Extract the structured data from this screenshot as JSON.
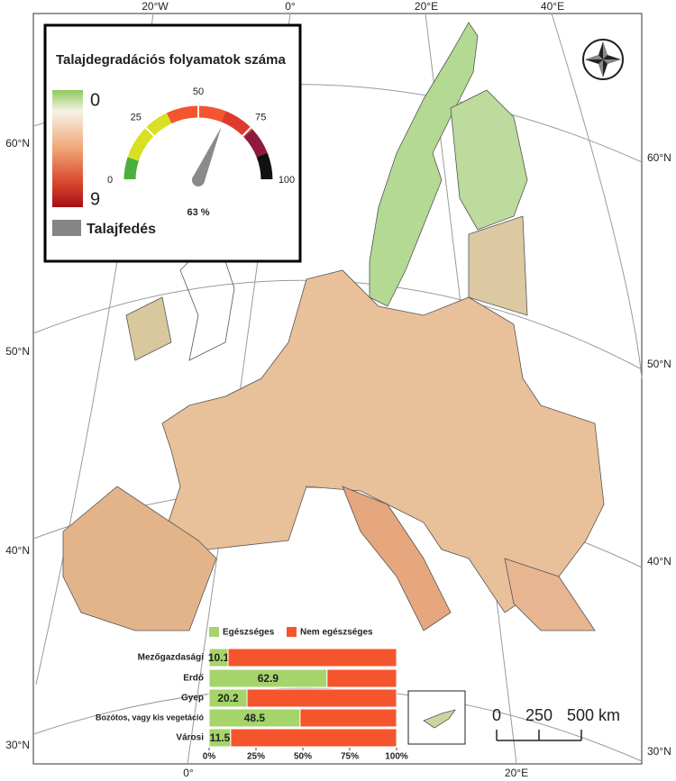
{
  "map": {
    "top_lon_labels": [
      "20°W",
      "0°",
      "20°E",
      "40°E"
    ],
    "bottom_lon_labels": [
      "0°",
      "20°E"
    ],
    "left_lat_labels": [
      "60°N",
      "50°N",
      "40°N",
      "30°N"
    ],
    "right_lat_labels": [
      "60°N",
      "50°N",
      "40°N",
      "30°N"
    ]
  },
  "legend": {
    "title": "Talajdegradációs folyamatok száma",
    "color_scale": {
      "min": 0,
      "max": 9
    },
    "soil_cover_label": "Talajfedés"
  },
  "gauge": {
    "value": 63,
    "value_label": "63 %",
    "range": [
      0,
      100
    ],
    "ticks": [
      0,
      25,
      50,
      75,
      100
    ]
  },
  "chart_data": {
    "type": "stacked-bar-horizontal",
    "categories": [
      "Mezőgazdasági",
      "Erdő",
      "Gyep",
      "Bozótos, vagy kis vegetáció",
      "Városi"
    ],
    "series": [
      {
        "name": "Egészséges",
        "color": "#a5d46a",
        "values": [
          10.1,
          62.9,
          20.2,
          48.5,
          11.5
        ]
      },
      {
        "name": "Nem egészséges",
        "color": "#f4552d",
        "values": [
          89.9,
          37.1,
          79.8,
          51.5,
          88.5
        ]
      }
    ],
    "xlim": [
      0,
      100
    ],
    "xticks": [
      {
        "value": 0,
        "label": "0%"
      },
      {
        "value": 25,
        "label": "25%"
      },
      {
        "value": 50,
        "label": "50%"
      },
      {
        "value": 75,
        "label": "75%"
      },
      {
        "value": 100,
        "label": "100%"
      }
    ]
  },
  "scale_bar": {
    "ticks": [
      0,
      250,
      {
        "value": 500,
        "label": "500 km"
      }
    ]
  }
}
